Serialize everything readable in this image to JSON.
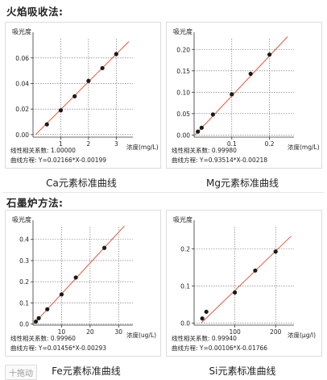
{
  "headings": {
    "flame": "火焰吸收法:",
    "graphite": "石墨炉方法:"
  },
  "badge": "十拖动",
  "chart_data": [
    {
      "id": "ca",
      "type": "scatter",
      "caption": "Ca元素标准曲线",
      "ylabel": "吸光度",
      "xlabel": "浓度(mg/L)",
      "xlim": [
        0,
        3.6
      ],
      "ylim": [
        -0.002,
        0.075
      ],
      "xticks": [
        1,
        2,
        3
      ],
      "xtick_labels": [
        "1",
        "2",
        "3"
      ],
      "yticks": [
        0,
        0.02,
        0.04,
        0.06
      ],
      "ytick_labels": [
        "0.00",
        "0.02",
        "0.04",
        "0.06"
      ],
      "x": [
        0.5,
        1.0,
        1.5,
        2.0,
        2.5,
        3.0
      ],
      "y": [
        0.008,
        0.019,
        0.03,
        0.042,
        0.052,
        0.063
      ],
      "fit": {
        "slope": 0.02166,
        "intercept": -0.00199,
        "x_range": [
          0.1,
          3.45
        ]
      },
      "gridlines": true,
      "r_label": "线性相关系数:",
      "r_value": "1.00000",
      "eq_label": "曲线方程:",
      "eq_value": "Y=0.02166*X-0.00199"
    },
    {
      "id": "mg",
      "type": "scatter",
      "caption": "Mg元素标准曲线",
      "ylabel": "吸光度",
      "xlabel": "浓度(mg/L)",
      "xlim": [
        0,
        0.265
      ],
      "ylim": [
        -0.005,
        0.225
      ],
      "xticks": [
        0.1,
        0.2
      ],
      "xtick_labels": [
        "0.1",
        "0.2"
      ],
      "yticks": [
        0,
        0.05,
        0.1,
        0.15,
        0.2
      ],
      "ytick_labels": [
        "0.00",
        "0.05",
        "0.10",
        "0.15",
        "0.20"
      ],
      "x": [
        0.01,
        0.02,
        0.05,
        0.1,
        0.15,
        0.2
      ],
      "y": [
        0.008,
        0.017,
        0.048,
        0.095,
        0.143,
        0.188
      ],
      "fit": {
        "slope": 0.93514,
        "intercept": -0.00218,
        "x_range": [
          0.002,
          0.248
        ]
      },
      "gridlines": true,
      "r_label": "线性相关系数:",
      "r_value": "0.99980",
      "eq_label": "曲线方程:",
      "eq_value": "Y=0.93514*X-0.00218"
    },
    {
      "id": "fe",
      "type": "scatter",
      "caption": "Fe元素标准曲线",
      "ylabel": "吸光度",
      "xlabel": "浓度(ug/L)",
      "xlim": [
        0,
        35
      ],
      "ylim": [
        -0.005,
        0.46
      ],
      "xticks": [
        10,
        20,
        30
      ],
      "xtick_labels": [
        "10",
        "20",
        "30"
      ],
      "yticks": [
        0,
        0.1,
        0.2,
        0.3,
        0.4
      ],
      "ytick_labels": [
        "0.0",
        "0.1",
        "0.2",
        "0.3",
        "0.4"
      ],
      "x": [
        1,
        2,
        5,
        10,
        15,
        25
      ],
      "y": [
        0.012,
        0.028,
        0.07,
        0.14,
        0.22,
        0.36
      ],
      "fit": {
        "slope": 0.01456,
        "intercept": -0.00293,
        "x_range": [
          0.3,
          32
        ]
      },
      "gridlines": true,
      "r_label": "线性相关系数:",
      "r_value": "0.99960",
      "eq_label": "曲线方程:",
      "eq_value": "Y=0.01456*X-0.00293"
    },
    {
      "id": "si",
      "type": "scatter",
      "caption": "Si元素标准曲线",
      "ylabel": "吸光度",
      "xlabel": "浓度(μg/l)",
      "xlim": [
        0,
        245
      ],
      "ylim": [
        -0.005,
        0.26
      ],
      "xticks": [
        100,
        200
      ],
      "xtick_labels": [
        "100",
        "200"
      ],
      "yticks": [
        0,
        0.1,
        0.2
      ],
      "ytick_labels": [
        "0.0",
        "0.1",
        "0.2"
      ],
      "x": [
        20,
        30,
        100,
        150,
        200
      ],
      "y": [
        0.013,
        0.031,
        0.083,
        0.142,
        0.193
      ],
      "fit": {
        "slope": 0.00106,
        "intercept": -0.01766,
        "x_range": [
          18,
          238
        ]
      },
      "gridlines": true,
      "r_label": "线性相关系数:",
      "r_value": "0.99940",
      "eq_label": "曲线方程:",
      "eq_value": "Y=0.00106*X-0.01766"
    }
  ]
}
